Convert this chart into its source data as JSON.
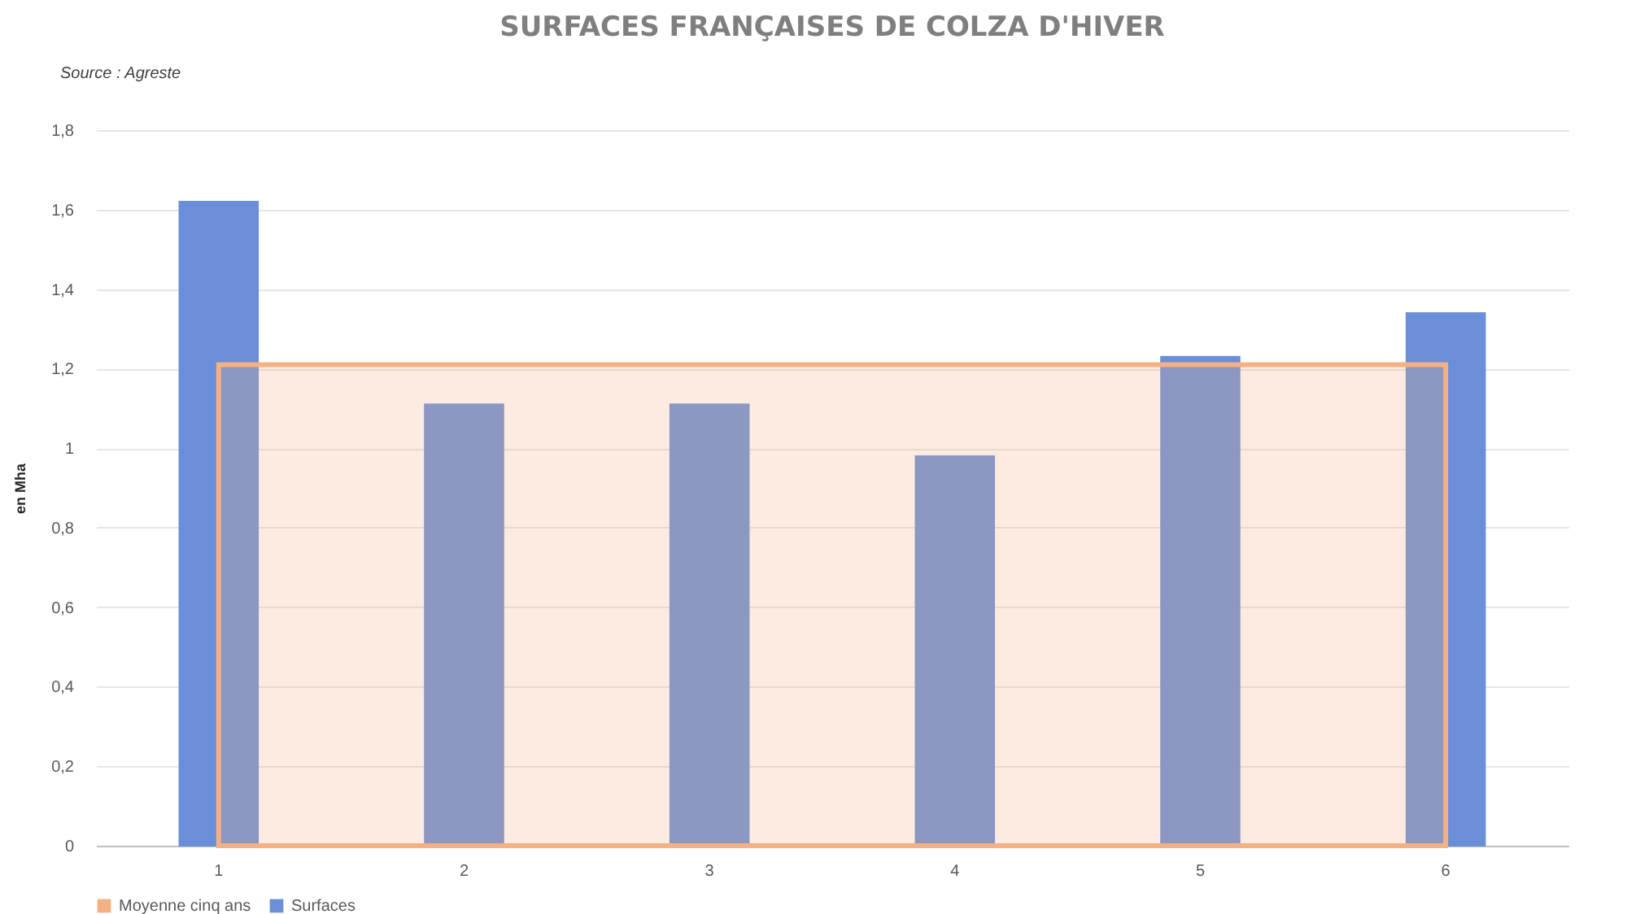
{
  "chart_data": {
    "type": "bar",
    "title": "SURFACES FRANÇAISES DE COLZA D'HIVER",
    "ylabel": "en Mha",
    "annotations": [
      "Source : Agreste"
    ],
    "categories": [
      "1",
      "2",
      "3",
      "4",
      "5",
      "6"
    ],
    "series": [
      {
        "name": "Moyenne cinq ans",
        "type": "area",
        "color": "#f4b183",
        "values": [
          1.21,
          1.21,
          1.21,
          1.21,
          1.21,
          1.21
        ]
      },
      {
        "name": "Surfaces",
        "color": "#6a8fd8",
        "values": [
          1.62,
          1.11,
          1.11,
          0.98,
          1.23,
          1.34
        ]
      }
    ],
    "ylim": [
      0,
      1.8
    ],
    "yticks": [
      0,
      {
        "value": 0.2,
        "label": "0,2"
      },
      {
        "value": 0.4,
        "label": "0,4"
      },
      {
        "value": 0.6,
        "label": "0,6"
      },
      {
        "value": 0.8,
        "label": "0,8"
      },
      1,
      {
        "value": 1.2,
        "label": "1,2"
      },
      {
        "value": 1.4,
        "label": "1,4"
      },
      {
        "value": 1.6,
        "label": "1,6"
      },
      {
        "value": 1.8,
        "label": "1,8"
      }
    ],
    "grid": "y",
    "legend": "bottom"
  }
}
